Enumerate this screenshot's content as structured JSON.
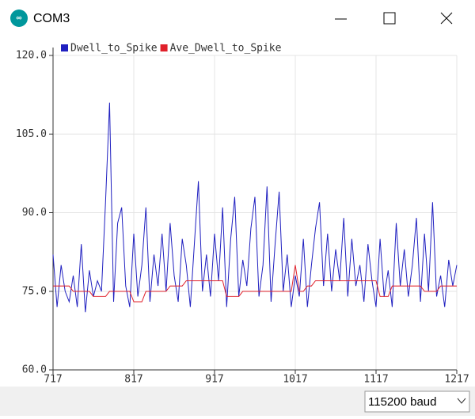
{
  "window": {
    "title": "COM3",
    "baud_selector": "115200 baud"
  },
  "chart_data": {
    "type": "line",
    "x": [
      717,
      722,
      727,
      732,
      737,
      742,
      747,
      752,
      757,
      762,
      767,
      772,
      777,
      782,
      787,
      792,
      797,
      802,
      807,
      812,
      817,
      822,
      827,
      832,
      837,
      842,
      847,
      852,
      857,
      862,
      867,
      872,
      877,
      882,
      887,
      892,
      897,
      902,
      907,
      912,
      917,
      922,
      927,
      932,
      937,
      942,
      947,
      952,
      957,
      962,
      967,
      972,
      977,
      982,
      987,
      992,
      997,
      1002,
      1007,
      1012,
      1017,
      1022,
      1027,
      1032,
      1037,
      1042,
      1047,
      1052,
      1057,
      1062,
      1067,
      1072,
      1077,
      1082,
      1087,
      1092,
      1097,
      1102,
      1107,
      1112,
      1117,
      1122,
      1127,
      1132,
      1137,
      1142,
      1147,
      1152,
      1157,
      1162,
      1167,
      1172,
      1177,
      1182,
      1187,
      1192,
      1197,
      1202,
      1207,
      1212,
      1217
    ],
    "series": [
      {
        "name": "Dwell_to_Spike",
        "color": "#2020c0",
        "values": [
          82,
          72,
          80,
          75,
          73,
          78,
          72,
          84,
          71,
          79,
          74,
          77,
          75,
          92,
          111,
          73,
          88,
          91,
          76,
          72,
          86,
          74,
          80,
          91,
          73,
          82,
          76,
          86,
          75,
          88,
          78,
          73,
          85,
          80,
          72,
          84,
          96,
          75,
          82,
          74,
          86,
          77,
          91,
          72,
          85,
          93,
          74,
          81,
          76,
          87,
          93,
          74,
          80,
          95,
          73,
          84,
          94,
          75,
          82,
          72,
          78,
          74,
          85,
          72,
          80,
          87,
          92,
          76,
          86,
          75,
          83,
          77,
          89,
          74,
          85,
          76,
          80,
          73,
          84,
          77,
          72,
          85,
          74,
          79,
          72,
          88,
          76,
          83,
          74,
          80,
          89,
          73,
          86,
          75,
          92,
          74,
          78,
          72,
          81,
          76,
          80
        ]
      },
      {
        "name": "Ave_Dwell_to_Spike",
        "color": "#e0202a",
        "values": [
          76,
          76,
          76,
          76,
          76,
          75,
          75,
          75,
          75,
          75,
          74,
          74,
          74,
          74,
          75,
          75,
          75,
          75,
          75,
          75,
          73,
          73,
          73,
          75,
          75,
          75,
          75,
          75,
          75,
          76,
          76,
          76,
          76,
          77,
          77,
          77,
          77,
          77,
          77,
          77,
          77,
          77,
          77,
          74,
          74,
          74,
          74,
          75,
          75,
          75,
          75,
          75,
          75,
          75,
          75,
          75,
          75,
          75,
          75,
          75,
          80,
          75,
          75,
          76,
          76,
          77,
          77,
          77,
          77,
          77,
          77,
          77,
          77,
          77,
          77,
          77,
          77,
          77,
          77,
          77,
          77,
          74,
          74,
          74,
          76,
          76,
          76,
          76,
          76,
          76,
          76,
          76,
          75,
          75,
          75,
          75,
          76,
          76,
          76,
          76,
          76
        ]
      }
    ],
    "xlim": [
      717,
      1217
    ],
    "xticks": [
      717,
      817,
      917,
      1017,
      1117,
      1217
    ],
    "ylim": [
      60,
      120
    ],
    "yticks": [
      {
        "value": 60,
        "label": "60.0"
      },
      {
        "value": 75,
        "label": "75.0"
      },
      {
        "value": 90,
        "label": "90.0"
      },
      {
        "value": 105,
        "label": "105.0"
      },
      {
        "value": 120,
        "label": "120.0"
      }
    ],
    "grid": true,
    "legend": "top"
  }
}
